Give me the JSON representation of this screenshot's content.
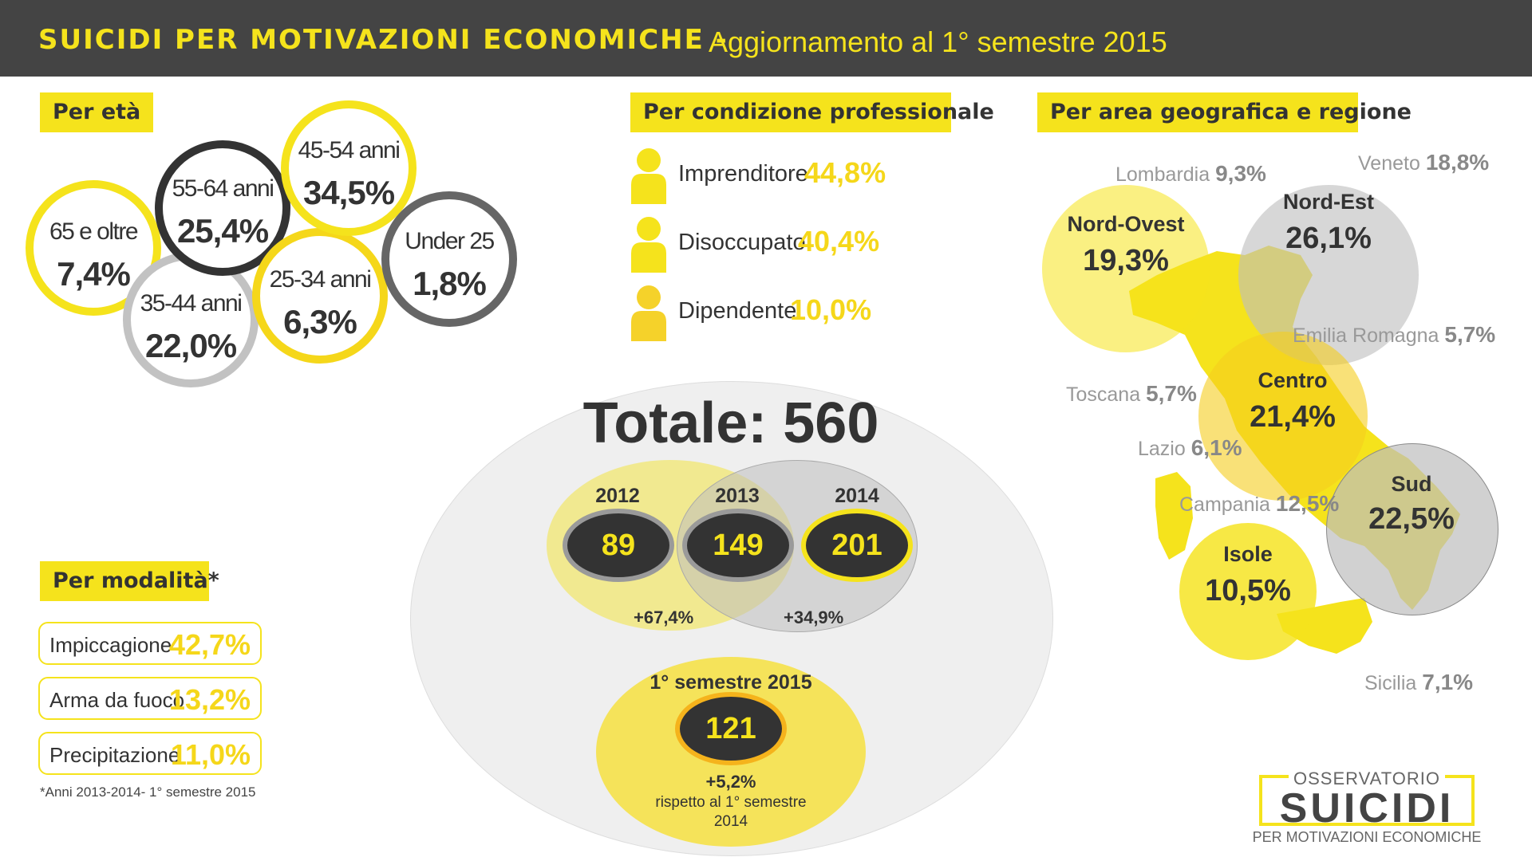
{
  "header": {
    "title": "SUICIDI PER MOTIVAZIONI ECONOMICHE -",
    "subtitle": "Aggiornamento al 1° semestre 2015"
  },
  "sections": {
    "eta": "Per età",
    "professione": "Per condizione professionale",
    "area": "Per area geografica e regione",
    "modalita": "Per modalità*"
  },
  "eta": [
    {
      "label": "65 e oltre",
      "value": "7,4%"
    },
    {
      "label": "55-64 anni",
      "value": "25,4%"
    },
    {
      "label": "45-54 anni",
      "value": "34,5%"
    },
    {
      "label": "35-44 anni",
      "value": "22,0%"
    },
    {
      "label": "25-34 anni",
      "value": "6,3%"
    },
    {
      "label": "Under 25",
      "value": "1,8%"
    }
  ],
  "professione": [
    {
      "label": "Imprenditore",
      "value": "44,8%"
    },
    {
      "label": "Disoccupato",
      "value": "40,4%"
    },
    {
      "label": "Dipendente",
      "value": "10,0%"
    }
  ],
  "modalita": [
    {
      "label": "Impiccagione",
      "value": "42,7%"
    },
    {
      "label": "Arma da fuoco",
      "value": "13,2%"
    },
    {
      "label": "Precipitazione",
      "value": "11,0%"
    }
  ],
  "modalita_note": "*Anni 2013-2014- 1° semestre 2015",
  "totale": {
    "title": "Totale: 560",
    "years": [
      {
        "year": "2012",
        "value": "89"
      },
      {
        "year": "2013",
        "value": "149"
      },
      {
        "year": "2014",
        "value": "201"
      }
    ],
    "change_1": "+67,4%",
    "change_2": "+34,9%",
    "semestre": {
      "label": "1° semestre 2015",
      "value": "121",
      "change": "+5,2%",
      "note_line1": "rispetto al 1° semestre",
      "note_line2": "2014"
    }
  },
  "aree": [
    {
      "name": "Nord-Ovest",
      "value": "19,3%"
    },
    {
      "name": "Nord-Est",
      "value": "26,1%"
    },
    {
      "name": "Centro",
      "value": "21,4%"
    },
    {
      "name": "Sud",
      "value": "22,5%"
    },
    {
      "name": "Isole",
      "value": "10,5%"
    }
  ],
  "regioni": [
    {
      "name": "Lombardia",
      "value": "9,3%"
    },
    {
      "name": "Veneto",
      "value": "18,8%"
    },
    {
      "name": "Emilia Romagna",
      "value": "5,7%"
    },
    {
      "name": "Toscana",
      "value": "5,7%"
    },
    {
      "name": "Lazio",
      "value": "6,1%"
    },
    {
      "name": "Campania",
      "value": "12,5%"
    },
    {
      "name": "Sicilia",
      "value": "7,1%"
    }
  ],
  "logo": {
    "line1": "OSSERVATORIO",
    "line2": "SUICIDI",
    "line3": "PER MOTIVAZIONI ECONOMICHE"
  },
  "chart_data": [
    {
      "type": "bubble",
      "title": "Per età",
      "categories": [
        "65 e oltre",
        "55-64 anni",
        "45-54 anni",
        "35-44 anni",
        "25-34 anni",
        "Under 25"
      ],
      "values": [
        7.4,
        25.4,
        34.5,
        22.0,
        6.3,
        1.8
      ],
      "unit": "%"
    },
    {
      "type": "bar",
      "title": "Per condizione professionale",
      "categories": [
        "Imprenditore",
        "Disoccupato",
        "Dipendente"
      ],
      "values": [
        44.8,
        40.4,
        10.0
      ],
      "unit": "%"
    },
    {
      "type": "table",
      "title": "Per modalità*",
      "categories": [
        "Impiccagione",
        "Arma da fuoco",
        "Precipitazione"
      ],
      "values": [
        42.7,
        13.2,
        11.0
      ],
      "unit": "%"
    },
    {
      "type": "bubble",
      "title": "Totale: 560",
      "categories": [
        "2012",
        "2013",
        "2014",
        "1° semestre 2015"
      ],
      "values": [
        89,
        149,
        201,
        121
      ]
    },
    {
      "type": "bubble",
      "title": "Per area geografica e regione",
      "categories": [
        "Nord-Ovest",
        "Nord-Est",
        "Centro",
        "Sud",
        "Isole"
      ],
      "values": [
        19.3,
        26.1,
        21.4,
        22.5,
        10.5
      ],
      "unit": "%",
      "regions": {
        "categories": [
          "Lombardia",
          "Veneto",
          "Emilia Romagna",
          "Toscana",
          "Lazio",
          "Campania",
          "Sicilia"
        ],
        "values": [
          9.3,
          18.8,
          5.7,
          5.7,
          6.1,
          12.5,
          7.1
        ]
      }
    }
  ]
}
